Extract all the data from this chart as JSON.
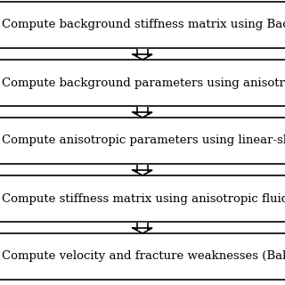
{
  "boxes": [
    "ackground stiffness matrix using Backus",
    "ackground parameters using anisotropic",
    "ropic parameters using linear-slip mode",
    "ness matrix using anisotropic fluid subst",
    "velocity and fracture weaknesses (Bakul"
  ],
  "box_labels_full": [
    "Compute background stiffness matrix using Backus averaging",
    "Compute background parameters using anisotropic Thomsen parameters",
    "Compute anisotropic parameters using linear-slip model",
    "Compute stiffness matrix using anisotropic fluid substitution",
    "Compute velocity and fracture weaknesses (Bakulin)"
  ],
  "box_color": "#ffffff",
  "border_color": "#000000",
  "arrow_color": "#000000",
  "bg_color": "#ffffff",
  "text_color": "#000000",
  "font_size": 9.5,
  "fig_width": 3.2,
  "fig_height": 3.2
}
